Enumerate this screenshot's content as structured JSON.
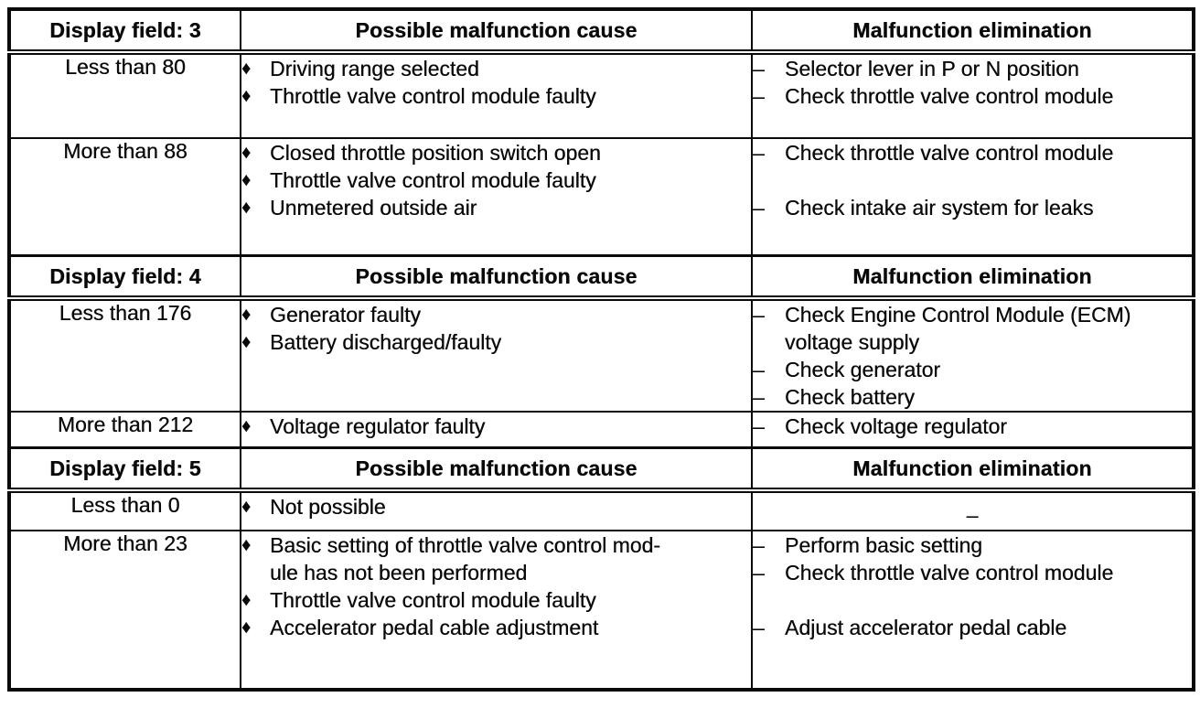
{
  "markers": {
    "cause_bullet": "♦",
    "elimination_dash": "–"
  },
  "colors": {
    "ink": "#0a0a0a",
    "paper": "#ffffff"
  },
  "table": {
    "sections": [
      {
        "display_field": "Display field: 3",
        "cause_header": "Possible malfunction cause",
        "elimination_header": "Malfunction elimination",
        "rows": [
          {
            "value": "Less than 80",
            "causes": [
              "Driving range selected",
              "Throttle valve control module faulty"
            ],
            "eliminations": [
              "Selector lever in P or N position",
              "Check throttle valve control module"
            ]
          },
          {
            "value": "More than 88",
            "causes": [
              "Closed throttle position switch open",
              "Throttle valve control module faulty",
              "Unmetered outside air"
            ],
            "eliminations": [
              "Check throttle valve control module",
              "",
              "Check intake air system for leaks"
            ]
          }
        ]
      },
      {
        "display_field": "Display field: 4",
        "cause_header": "Possible malfunction cause",
        "elimination_header": "Malfunction elimination",
        "rows": [
          {
            "value": "Less than 176",
            "causes": [
              "Generator faulty",
              "Battery discharged/faulty"
            ],
            "eliminations": [
              "Check Engine Control Module (ECM)\nvoltage supply",
              "Check generator",
              "Check battery"
            ]
          },
          {
            "value": "More than 212",
            "causes": [
              "Voltage regulator faulty"
            ],
            "eliminations": [
              "Check voltage regulator"
            ]
          }
        ]
      },
      {
        "display_field": "Display field: 5",
        "cause_header": "Possible malfunction cause",
        "elimination_header": "Malfunction elimination",
        "rows": [
          {
            "value": "Less than 0",
            "causes": [
              "Not possible"
            ],
            "eliminations": [
              "–"
            ],
            "elimination_centered_dash": true
          },
          {
            "value": "More than 23",
            "causes": [
              "Basic setting of throttle valve control mod-\nule has not been performed",
              "Throttle valve control module faulty",
              "Accelerator pedal cable adjustment"
            ],
            "eliminations": [
              "Perform basic setting",
              "Check throttle valve control module",
              "",
              "Adjust accelerator pedal cable"
            ]
          }
        ]
      }
    ]
  }
}
